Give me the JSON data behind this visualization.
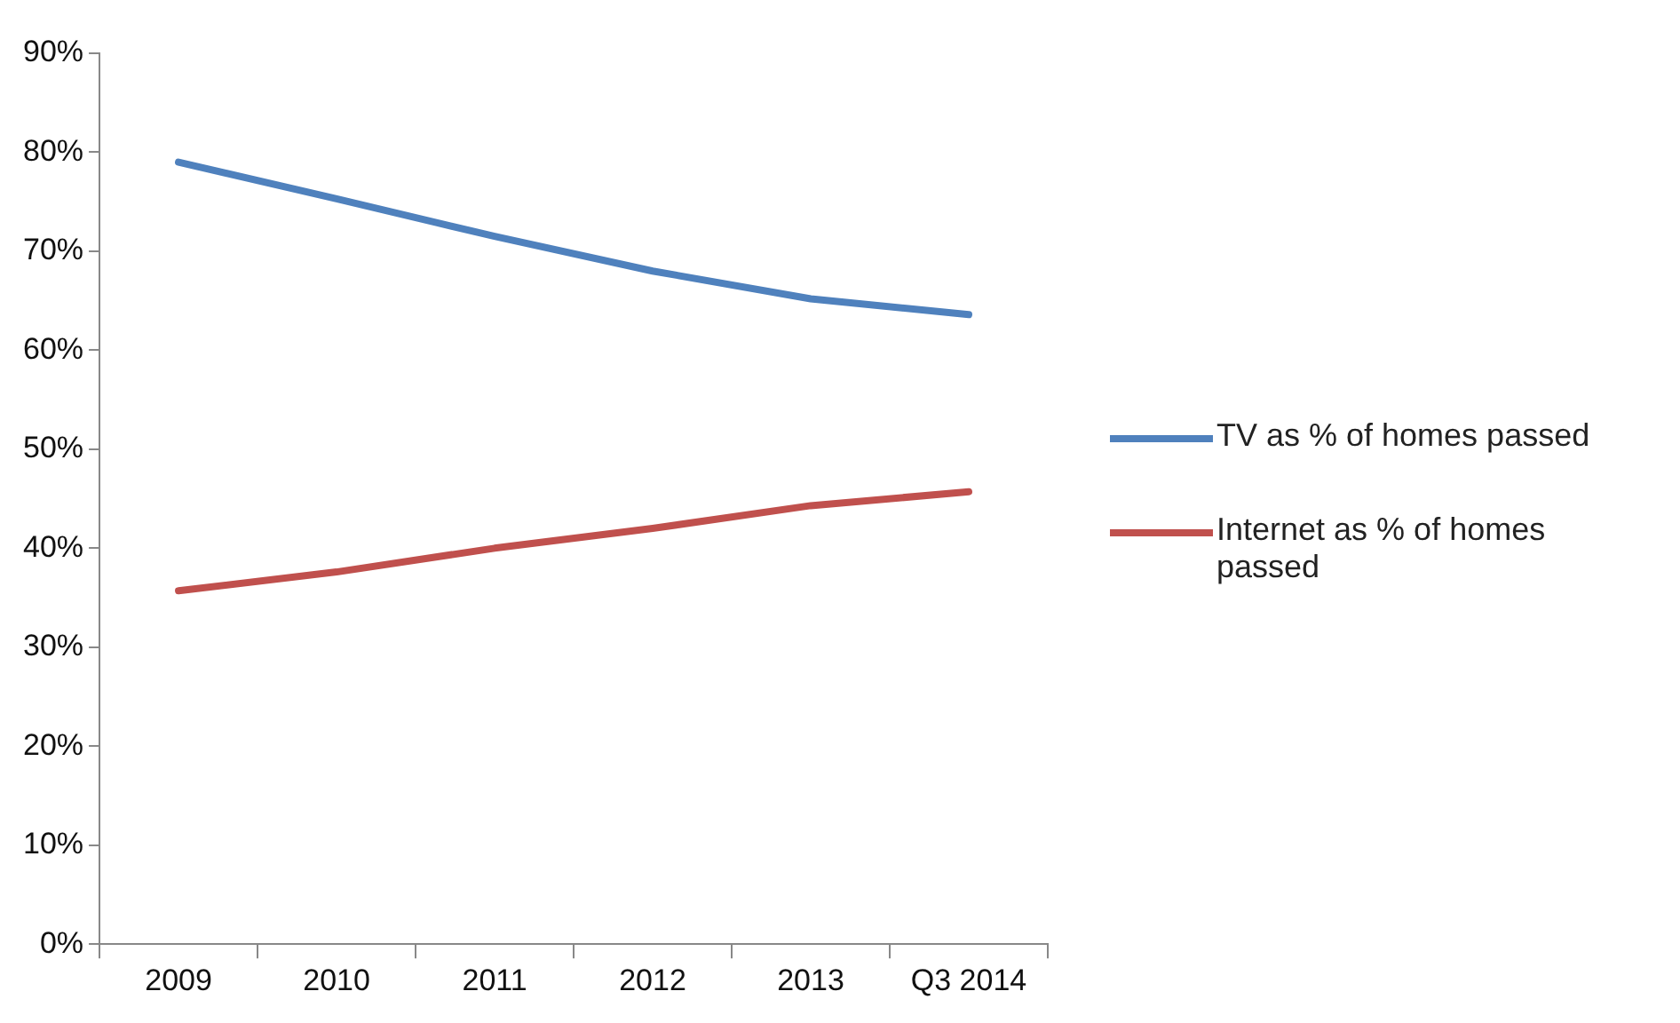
{
  "chart_data": {
    "type": "line",
    "categories": [
      "2009",
      "2010",
      "2011",
      "2012",
      "2013",
      "Q3 2014"
    ],
    "series": [
      {
        "name": "TV as % of homes passed",
        "color": "#4f81bd",
        "values": [
          79,
          75.3,
          71.5,
          68,
          65.2,
          63.6
        ]
      },
      {
        "name": "Internet as % of homes passed",
        "color": "#c0504d",
        "values": [
          35.7,
          37.6,
          40,
          42,
          44.3,
          45.7
        ]
      }
    ],
    "ylim": [
      0,
      90
    ],
    "yticks": [
      {
        "value": 0,
        "label": "0%"
      },
      {
        "value": 10,
        "label": "10%"
      },
      {
        "value": 20,
        "label": "20%"
      },
      {
        "value": 30,
        "label": "30%"
      },
      {
        "value": 40,
        "label": "40%"
      },
      {
        "value": 50,
        "label": "50%"
      },
      {
        "value": 60,
        "label": "60%"
      },
      {
        "value": 70,
        "label": "70%"
      },
      {
        "value": 80,
        "label": "80%"
      },
      {
        "value": 90,
        "label": "90%"
      }
    ],
    "grid": false,
    "legend": "right",
    "marker": "none",
    "line_style": "solid"
  }
}
